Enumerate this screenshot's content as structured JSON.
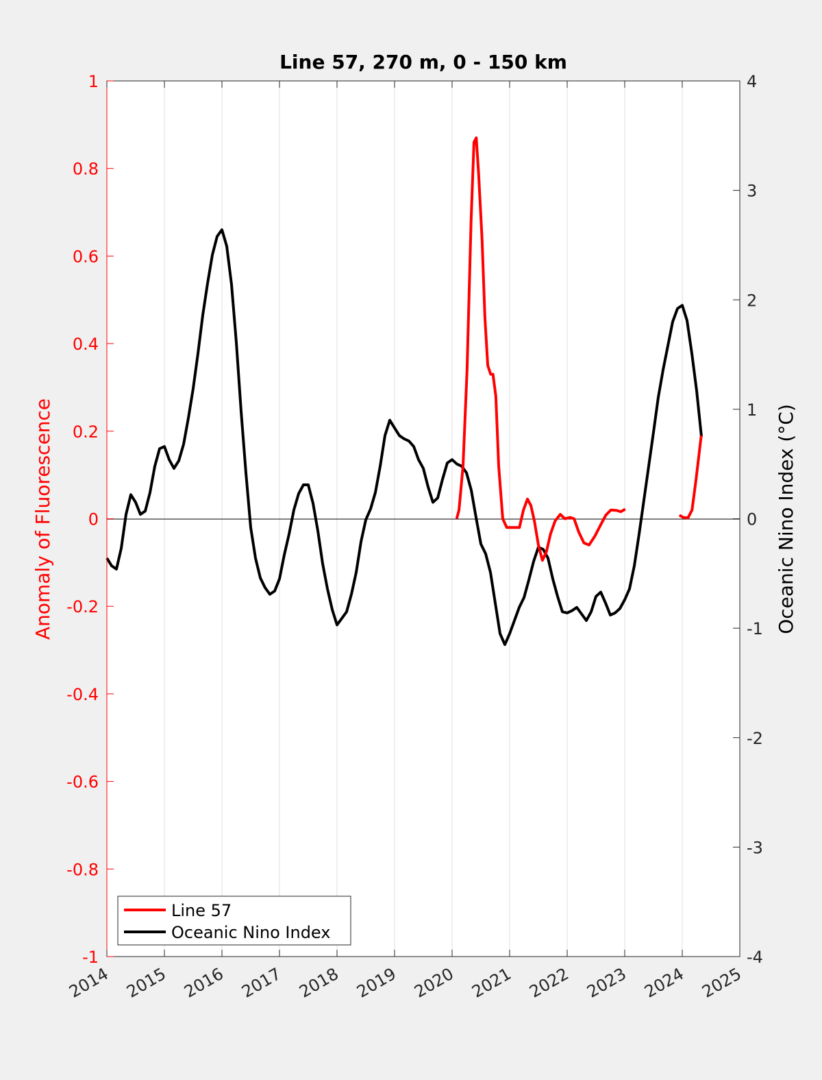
{
  "chart_data": {
    "type": "line",
    "title": "Line 57, 270 m, 0 - 150 km",
    "xlabel": "",
    "ylabel_left": "Anomaly of Fluorescence",
    "ylabel_right": "Oceanic Nino Index (°C)",
    "xlim": [
      2014,
      2025
    ],
    "ylim_left": [
      -1,
      1
    ],
    "ylim_right": [
      -4,
      4
    ],
    "xticks": [
      "2014",
      "2015",
      "2016",
      "2017",
      "2018",
      "2019",
      "2020",
      "2021",
      "2022",
      "2023",
      "2024",
      "2025"
    ],
    "yticks_left": [
      "1",
      "0.8",
      "0.6",
      "0.4",
      "0.2",
      "0",
      "-0.2",
      "-0.4",
      "-0.6",
      "-0.8",
      "-1"
    ],
    "yticks_right": [
      "4",
      "3",
      "2",
      "1",
      "0",
      "-1",
      "-2",
      "-3",
      "-4"
    ],
    "grid": "x",
    "legend_position": "bottom-left",
    "colors": {
      "line57": "#ff0000",
      "oni": "#000000",
      "left_axis": "#ff0000",
      "background": "#f0f0f0"
    },
    "series": [
      {
        "name": "Line 57",
        "axis": "left",
        "segments": [
          [
            [
              2020.08,
              0
            ],
            [
              2020.12,
              0.02
            ],
            [
              2020.19,
              0.12
            ],
            [
              2020.26,
              0.34
            ],
            [
              2020.33,
              0.68
            ],
            [
              2020.38,
              0.86
            ],
            [
              2020.42,
              0.87
            ],
            [
              2020.46,
              0.79
            ],
            [
              2020.52,
              0.64
            ],
            [
              2020.57,
              0.46
            ],
            [
              2020.62,
              0.35
            ],
            [
              2020.67,
              0.33
            ],
            [
              2020.71,
              0.33
            ],
            [
              2020.76,
              0.28
            ],
            [
              2020.81,
              0.12
            ],
            [
              2020.88,
              0.0
            ],
            [
              2020.95,
              -0.02
            ],
            [
              2021.02,
              -0.02
            ],
            [
              2021.1,
              -0.02
            ],
            [
              2021.17,
              -0.02
            ],
            [
              2021.24,
              0.02
            ],
            [
              2021.31,
              0.045
            ],
            [
              2021.37,
              0.03
            ],
            [
              2021.43,
              -0.005
            ],
            [
              2021.5,
              -0.06
            ],
            [
              2021.57,
              -0.095
            ],
            [
              2021.64,
              -0.075
            ],
            [
              2021.71,
              -0.035
            ],
            [
              2021.79,
              -0.005
            ],
            [
              2021.88,
              0.01
            ],
            [
              2021.96,
              0.0
            ],
            [
              2022.05,
              0.003
            ],
            [
              2022.12,
              0.0
            ],
            [
              2022.2,
              -0.03
            ],
            [
              2022.29,
              -0.055
            ],
            [
              2022.38,
              -0.06
            ],
            [
              2022.48,
              -0.04
            ],
            [
              2022.57,
              -0.017
            ],
            [
              2022.67,
              0.008
            ],
            [
              2022.76,
              0.02
            ],
            [
              2022.86,
              0.019
            ],
            [
              2022.93,
              0.016
            ],
            [
              2023.01,
              0.022
            ]
          ],
          [
            [
              2023.95,
              0.008
            ],
            [
              2024.02,
              0.003
            ],
            [
              2024.1,
              0.002
            ],
            [
              2024.17,
              0.02
            ],
            [
              2024.24,
              0.09
            ],
            [
              2024.33,
              0.19
            ]
          ]
        ]
      },
      {
        "name": "Oceanic Nino Index",
        "axis": "right",
        "x_start": 2014.0,
        "x_step_months": 1,
        "values": [
          -0.36,
          -0.43,
          -0.46,
          -0.27,
          0.04,
          0.22,
          0.15,
          0.04,
          0.07,
          0.24,
          0.48,
          0.64,
          0.66,
          0.54,
          0.46,
          0.53,
          0.68,
          0.92,
          1.19,
          1.51,
          1.86,
          2.15,
          2.41,
          2.58,
          2.64,
          2.49,
          2.14,
          1.61,
          0.98,
          0.42,
          -0.08,
          -0.36,
          -0.54,
          -0.63,
          -0.69,
          -0.66,
          -0.55,
          -0.33,
          -0.14,
          0.08,
          0.23,
          0.31,
          0.31,
          0.14,
          -0.11,
          -0.41,
          -0.64,
          -0.83,
          -0.97,
          -0.91,
          -0.85,
          -0.69,
          -0.49,
          -0.21,
          -0.01,
          0.09,
          0.24,
          0.48,
          0.76,
          0.9,
          0.83,
          0.76,
          0.73,
          0.71,
          0.66,
          0.54,
          0.46,
          0.29,
          0.15,
          0.19,
          0.36,
          0.51,
          0.54,
          0.5,
          0.48,
          0.42,
          0.26,
          0.01,
          -0.23,
          -0.32,
          -0.49,
          -0.77,
          -1.05,
          -1.15,
          -1.05,
          -0.93,
          -0.81,
          -0.72,
          -0.56,
          -0.39,
          -0.26,
          -0.28,
          -0.36,
          -0.55,
          -0.71,
          -0.85,
          -0.86,
          -0.84,
          -0.81,
          -0.87,
          -0.93,
          -0.85,
          -0.71,
          -0.67,
          -0.77,
          -0.88,
          -0.86,
          -0.82,
          -0.74,
          -0.64,
          -0.43,
          -0.14,
          0.17,
          0.48,
          0.79,
          1.11,
          1.36,
          1.58,
          1.8,
          1.92,
          1.95,
          1.81,
          1.51,
          1.17,
          0.75
        ]
      }
    ]
  }
}
